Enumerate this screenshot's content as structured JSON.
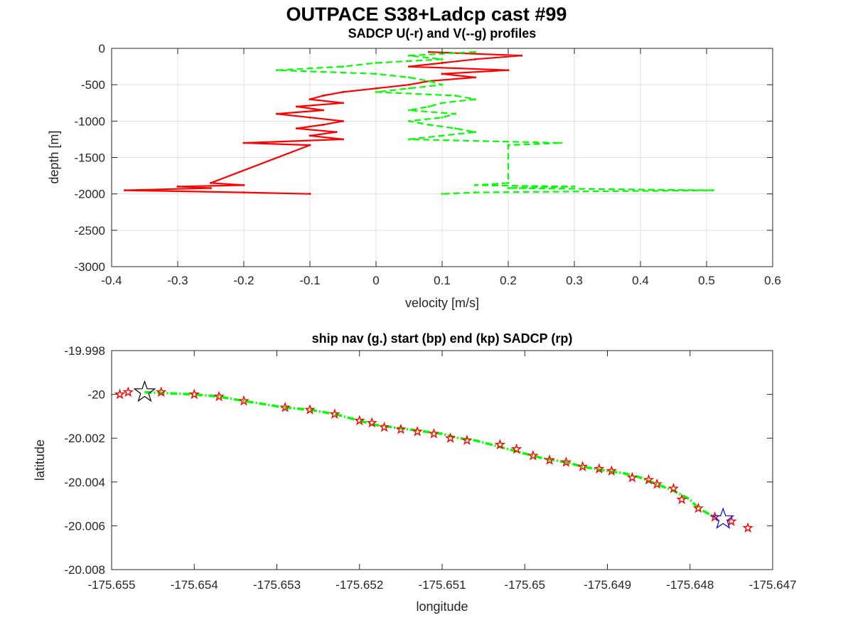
{
  "figure": {
    "title": "OUTPACE S38+Ladcp cast #99"
  },
  "chart_data": [
    {
      "type": "line",
      "title": "SADCP U(-r) and V(--g) profiles",
      "xlabel": "velocity [m/s]",
      "ylabel": "depth [m]",
      "xlim": [
        -0.4,
        0.6
      ],
      "ylim": [
        -3000,
        0
      ],
      "xticks": [
        "-0.4",
        "-0.3",
        "-0.2",
        "-0.1",
        "0",
        "0.1",
        "0.2",
        "0.3",
        "0.4",
        "0.5",
        "0.6"
      ],
      "yticks": [
        "0",
        "-500",
        "-1000",
        "-1500",
        "-2000",
        "-2500",
        "-3000"
      ],
      "grid": true,
      "series": [
        {
          "name": "U",
          "color": "#ff0000",
          "style": "solid",
          "depth": [
            -50,
            -100,
            -150,
            -200,
            -250,
            -300,
            -350,
            -400,
            -450,
            -500,
            -550,
            -600,
            -650,
            -700,
            -750,
            -800,
            -850,
            -900,
            -950,
            -1000,
            -1050,
            -1100,
            -1150,
            -1200,
            -1250,
            -1300,
            -1330,
            -1850,
            -1880,
            -1900,
            -1920,
            -1950,
            -1980,
            -2000
          ],
          "values": [
            0.08,
            0.22,
            0.15,
            0.1,
            0.05,
            0.2,
            0.1,
            0.15,
            0.08,
            0.05,
            0.0,
            -0.05,
            -0.08,
            -0.1,
            -0.05,
            -0.12,
            -0.08,
            -0.15,
            -0.1,
            -0.05,
            -0.08,
            -0.12,
            -0.06,
            -0.1,
            -0.05,
            -0.2,
            -0.1,
            -0.25,
            -0.2,
            -0.3,
            -0.25,
            -0.38,
            -0.2,
            -0.1
          ]
        },
        {
          "name": "V",
          "color": "#00ff00",
          "style": "dashed",
          "depth": [
            -50,
            -100,
            -150,
            -200,
            -250,
            -300,
            -350,
            -400,
            -450,
            -500,
            -550,
            -600,
            -650,
            -700,
            -750,
            -800,
            -850,
            -900,
            -950,
            -1000,
            -1050,
            -1100,
            -1150,
            -1200,
            -1250,
            -1300,
            -1330,
            -1850,
            -1880,
            -1900,
            -1920,
            -1950,
            -1980,
            -2000
          ],
          "values": [
            0.15,
            0.05,
            0.1,
            0.0,
            -0.05,
            -0.15,
            0.0,
            0.05,
            0.08,
            0.1,
            0.05,
            0.0,
            0.12,
            0.15,
            0.1,
            0.08,
            0.05,
            0.12,
            0.1,
            0.05,
            0.08,
            0.12,
            0.15,
            0.1,
            0.05,
            0.28,
            0.2,
            0.2,
            0.15,
            0.3,
            0.2,
            0.51,
            0.15,
            0.1
          ]
        }
      ]
    },
    {
      "type": "scatter",
      "title": "ship nav (g.) start (bp) end (kp) SADCP (rp)",
      "xlabel": "longitude",
      "ylabel": "latitude",
      "xlim": [
        -175.655,
        -175.647
      ],
      "ylim": [
        -20.008,
        -19.998
      ],
      "xticks": [
        "-175.655",
        "-175.654",
        "-175.653",
        "-175.652",
        "-175.651",
        "-175.65",
        "-175.649",
        "-175.648",
        "-175.647"
      ],
      "yticks": [
        "-19.998",
        "-20",
        "-20.002",
        "-20.004",
        "-20.006",
        "-20.008"
      ],
      "grid": false,
      "series": [
        {
          "name": "ship nav",
          "color": "#00ff00",
          "style": "dash-dot",
          "x": [
            -175.6546,
            -175.654,
            -175.6537,
            -175.6534,
            -175.6529,
            -175.6526,
            -175.6523,
            -175.652,
            -175.6518,
            -175.6516,
            -175.6514,
            -175.6512,
            -175.651,
            -175.6508,
            -175.6506,
            -175.6504,
            -175.6502,
            -175.65,
            -175.6498,
            -175.6495,
            -175.6493,
            -175.649,
            -175.6488,
            -175.6486,
            -175.6484,
            -175.6482,
            -175.648,
            -175.6479,
            -175.6477
          ],
          "y": [
            -19.9999,
            -20.0,
            -20.0001,
            -20.0003,
            -20.0006,
            -20.0007,
            -20.0009,
            -20.0012,
            -20.0014,
            -20.0015,
            -20.0016,
            -20.0017,
            -20.0018,
            -20.002,
            -20.0021,
            -20.0023,
            -20.0025,
            -20.0027,
            -20.0029,
            -20.0031,
            -20.0033,
            -20.0035,
            -20.0036,
            -20.0038,
            -20.0041,
            -20.0044,
            -20.0048,
            -20.0052,
            -20.0056
          ]
        },
        {
          "name": "SADCP",
          "color": "#ff0000",
          "marker": "pentagram",
          "x": [
            -175.6549,
            -175.6548,
            -175.6544,
            -175.654,
            -175.6537,
            -175.6534,
            -175.6529,
            -175.6526,
            -175.6523,
            -175.652,
            -175.65185,
            -175.6517,
            -175.6515,
            -175.6513,
            -175.6511,
            -175.6509,
            -175.6507,
            -175.6503,
            -175.6501,
            -175.6499,
            -175.6497,
            -175.6495,
            -175.6493,
            -175.6491,
            -175.64895,
            -175.6487,
            -175.6485,
            -175.6484,
            -175.6482,
            -175.6481,
            -175.6479,
            -175.6477,
            -175.6475,
            -175.6473
          ],
          "y": [
            -20.0,
            -19.9999,
            -19.9999,
            -20.0,
            -20.0001,
            -20.0003,
            -20.0006,
            -20.0007,
            -20.0009,
            -20.0012,
            -20.0013,
            -20.0015,
            -20.0016,
            -20.0017,
            -20.0018,
            -20.002,
            -20.0021,
            -20.0023,
            -20.0025,
            -20.0028,
            -20.003,
            -20.0031,
            -20.0033,
            -20.0034,
            -20.0035,
            -20.0038,
            -20.0039,
            -20.0041,
            -20.0043,
            -20.0048,
            -20.0052,
            -20.0056,
            -20.0058,
            -20.0061
          ]
        },
        {
          "name": "start",
          "color": "#0000ff",
          "marker": "pentagram",
          "x": [
            -175.6476
          ],
          "y": [
            -20.0057
          ]
        },
        {
          "name": "end",
          "color": "#000000",
          "marker": "pentagram",
          "x": [
            -175.6546
          ],
          "y": [
            -19.9999
          ]
        }
      ]
    }
  ]
}
